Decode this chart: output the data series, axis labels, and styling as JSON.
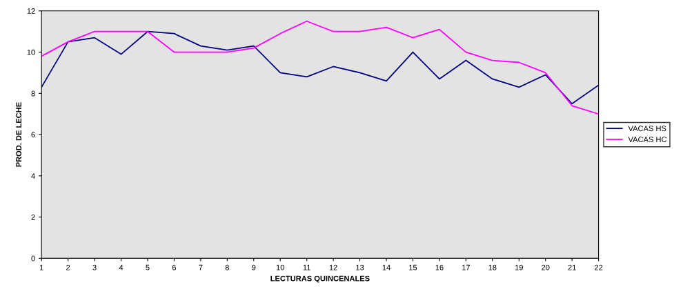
{
  "chart_data": {
    "type": "line",
    "xlabel": "LECTURAS QUINCENALES",
    "ylabel": "PROD. DE LECHE",
    "x": [
      1,
      2,
      3,
      4,
      5,
      6,
      7,
      8,
      9,
      10,
      11,
      12,
      13,
      14,
      15,
      16,
      17,
      18,
      19,
      20,
      21,
      22
    ],
    "series": [
      {
        "name": "VACAS HS",
        "color": "#000080",
        "values": [
          8.3,
          10.5,
          10.7,
          9.9,
          11.0,
          10.9,
          10.3,
          10.1,
          10.3,
          9.0,
          8.8,
          9.3,
          9.0,
          8.6,
          10.0,
          8.7,
          9.6,
          8.7,
          8.3,
          8.9,
          7.5,
          8.4
        ]
      },
      {
        "name": "VACAS HC",
        "color": "#ff00ff",
        "values": [
          9.8,
          10.5,
          11.0,
          11.0,
          11.0,
          10.0,
          10.0,
          10.0,
          10.2,
          10.9,
          11.5,
          11.0,
          11.0,
          11.2,
          10.7,
          11.1,
          10.0,
          9.6,
          9.5,
          9.0,
          7.4,
          7.0
        ]
      }
    ],
    "xlim": [
      1,
      22
    ],
    "xticks": [
      1,
      2,
      3,
      4,
      5,
      6,
      7,
      8,
      9,
      10,
      11,
      12,
      13,
      14,
      15,
      16,
      17,
      18,
      19,
      20,
      21,
      22
    ],
    "ylim": [
      0,
      12
    ],
    "yticks": [
      0,
      2,
      4,
      6,
      8,
      10,
      12
    ],
    "grid": false,
    "legend": "right",
    "marker": "none",
    "line_style": "solid"
  }
}
